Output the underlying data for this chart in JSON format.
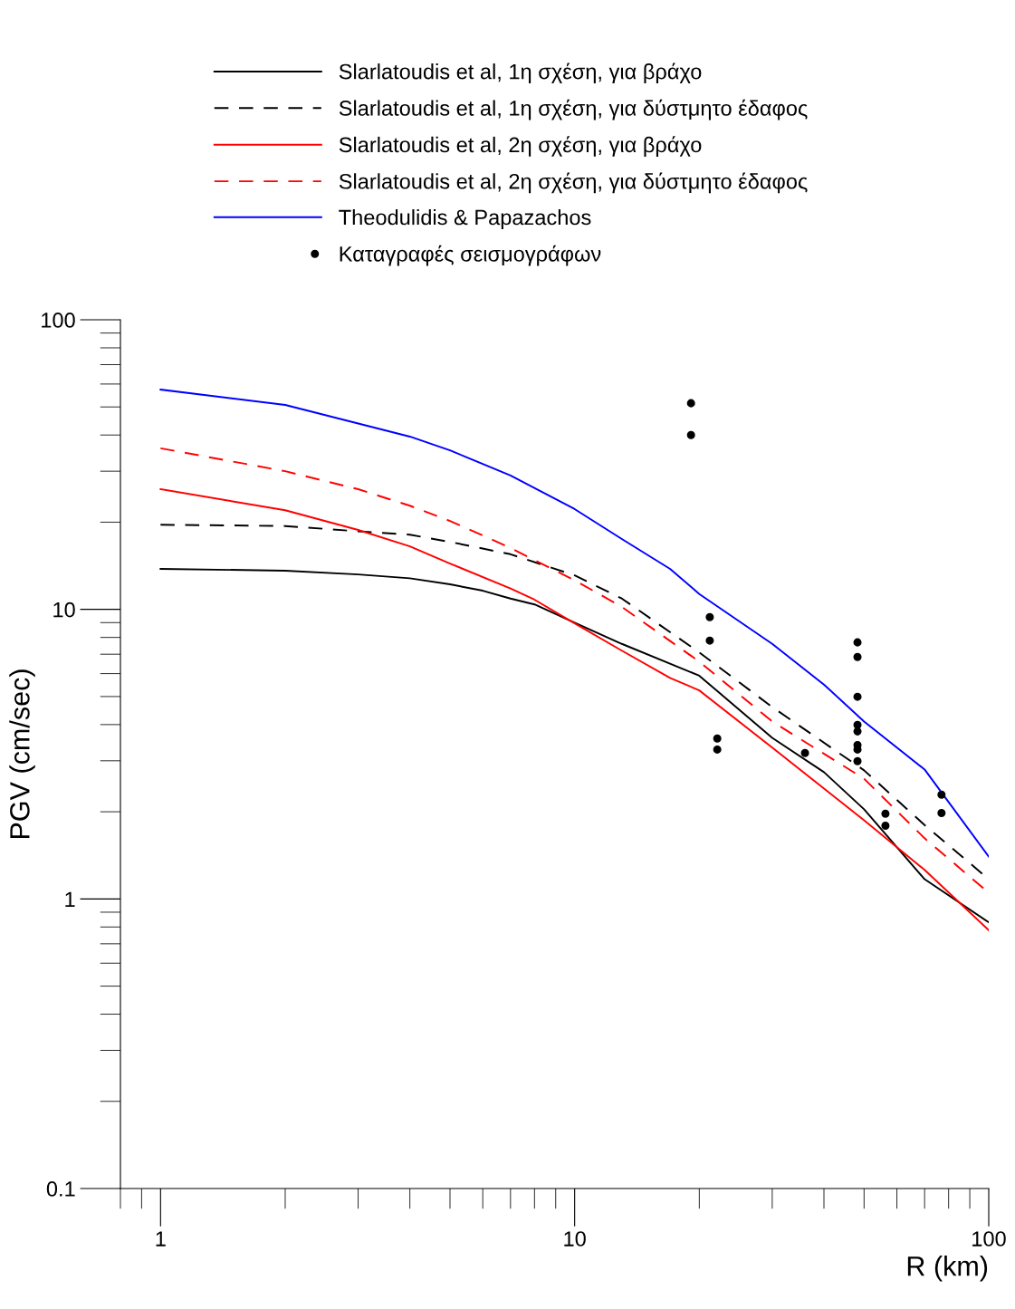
{
  "chart_data": {
    "type": "line",
    "xlabel": "R (km)",
    "ylabel": "PGV (cm/sec)",
    "log": "xy",
    "xlim": [
      0.8,
      100
    ],
    "ylim": [
      0.1,
      100
    ],
    "xticks": [
      1,
      10,
      100
    ],
    "yticks": [
      0.1,
      1,
      10,
      100
    ],
    "grid": false,
    "legend": "top",
    "series": [
      {
        "name": "Slarlatoudis et al, 1η σχέση, για βράχο",
        "color": "#000000",
        "line_style": "solid",
        "marker": "none",
        "x": [
          1,
          2,
          3,
          4,
          5,
          6,
          7,
          8,
          10,
          13,
          20,
          30,
          40,
          50,
          70,
          100
        ],
        "values": [
          13.8,
          13.6,
          13.2,
          12.8,
          12.2,
          11.6,
          10.9,
          10.4,
          9.0,
          7.6,
          5.9,
          3.6,
          2.74,
          2.04,
          1.17,
          0.83
        ]
      },
      {
        "name": "Slarlatoudis et al, 1η σχέση, για δύστμητο έδαφος",
        "color": "#000000",
        "line_style": "dashed",
        "marker": "none",
        "x": [
          1,
          2,
          3,
          4,
          5,
          7,
          10,
          13,
          20,
          30,
          50,
          70,
          100
        ],
        "values": [
          19.6,
          19.4,
          18.6,
          18.1,
          17.1,
          15.5,
          13.1,
          10.9,
          7.1,
          4.6,
          2.78,
          1.8,
          1.17
        ]
      },
      {
        "name": "Slarlatoudis et al, 2η σχέση, για βράχο",
        "color": "#ff0000",
        "line_style": "solid",
        "marker": "none",
        "x": [
          1,
          2,
          3,
          4,
          5,
          7,
          8,
          10,
          13,
          17,
          20,
          30,
          50,
          70,
          100
        ],
        "values": [
          26.0,
          22.0,
          18.8,
          16.5,
          14.4,
          11.8,
          10.8,
          8.95,
          7.2,
          5.8,
          5.25,
          3.33,
          1.87,
          1.26,
          0.78
        ]
      },
      {
        "name": "Slarlatoudis et al, 2η σχέση, για δύστμητο έδαφος",
        "color": "#ff0000",
        "line_style": "dashed",
        "marker": "none",
        "x": [
          1,
          2,
          3,
          4,
          5,
          7,
          10,
          13,
          20,
          30,
          50,
          70,
          100
        ],
        "values": [
          36,
          30,
          26,
          22.8,
          20.2,
          16.3,
          12.6,
          10.2,
          6.6,
          4.1,
          2.6,
          1.62,
          1.05
        ]
      },
      {
        "name": "Theodulidis & Papazachos",
        "color": "#0000ff",
        "line_style": "solid",
        "marker": "none",
        "x": [
          1,
          2,
          4,
          5,
          7,
          10,
          13,
          17,
          20,
          30,
          40,
          50,
          70,
          100
        ],
        "values": [
          57.4,
          50.8,
          39.5,
          35.4,
          29.0,
          22.2,
          17.5,
          13.8,
          11.3,
          7.6,
          5.5,
          4.1,
          2.8,
          1.4
        ]
      },
      {
        "name": "Καταγραφές σεισμογράφων",
        "type": "scatter",
        "color": "#000000",
        "marker": "circle",
        "x": [
          19.1,
          19.1,
          21.2,
          21.2,
          22.1,
          22.1,
          36,
          48.2,
          48.2,
          48.2,
          48.2,
          48.2,
          48.2,
          48.2,
          48.2,
          56.3,
          56.3,
          76.9,
          76.9
        ],
        "values": [
          51.5,
          40,
          9.4,
          7.8,
          3.58,
          3.28,
          3.19,
          7.69,
          6.85,
          4.99,
          3.99,
          3.79,
          3.4,
          3.28,
          2.99,
          1.97,
          1.79,
          2.29,
          1.98
        ]
      }
    ]
  }
}
